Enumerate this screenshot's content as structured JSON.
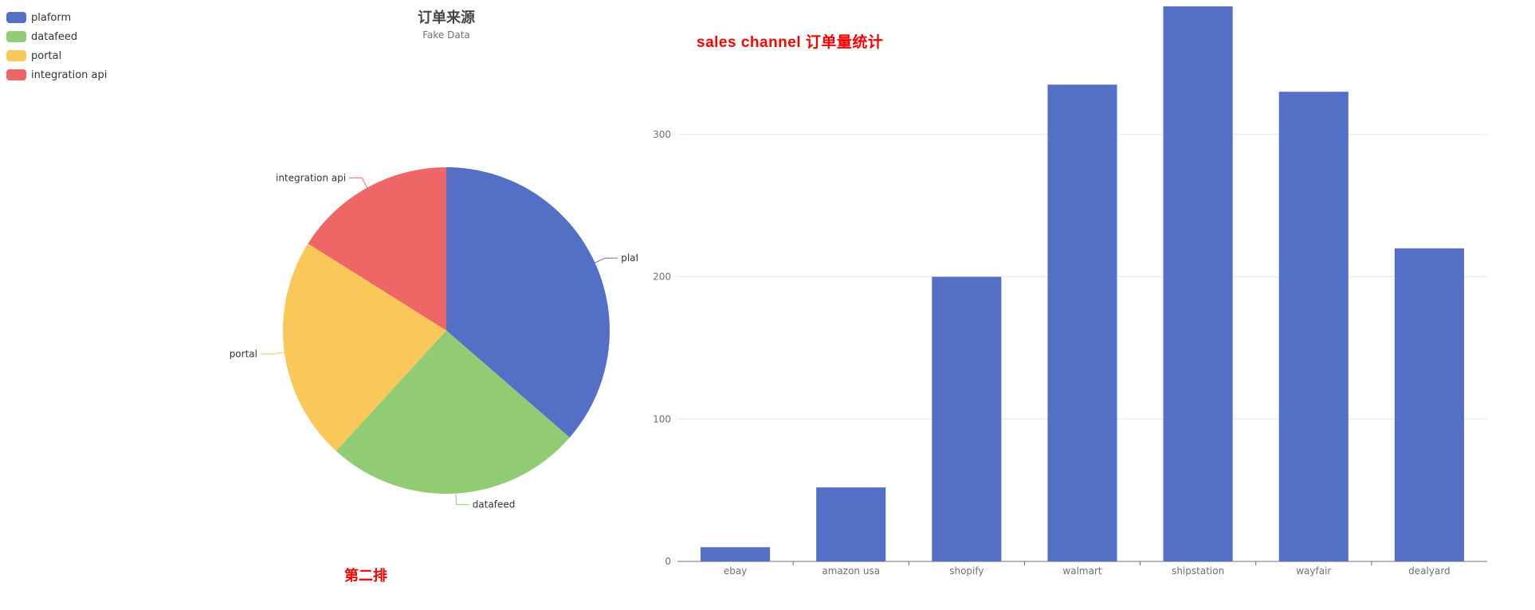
{
  "chart_data": [
    {
      "type": "pie",
      "title": "订单来源",
      "subtitle": "Fake Data",
      "legend_position": "top-left",
      "categories": [
        "plaform",
        "datafeed",
        "portal",
        "integration api"
      ],
      "values": [
        335,
        234,
        204,
        148
      ],
      "colors": [
        "#5470c6",
        "#91cc75",
        "#fac858",
        "#ee6666"
      ]
    },
    {
      "type": "bar",
      "title": "sales channel 订单量统计",
      "categories": [
        "ebay",
        "amazon usa",
        "shopify",
        "walmart",
        "shipstation",
        "wayfair",
        "dealyard"
      ],
      "values": [
        10,
        52,
        200,
        335,
        390,
        330,
        220
      ],
      "ylim": [
        0,
        390
      ],
      "yticks": [
        "0",
        "100",
        "200",
        "300"
      ],
      "grid": true,
      "color": "#5470c6"
    }
  ],
  "footer_label": "第二排"
}
